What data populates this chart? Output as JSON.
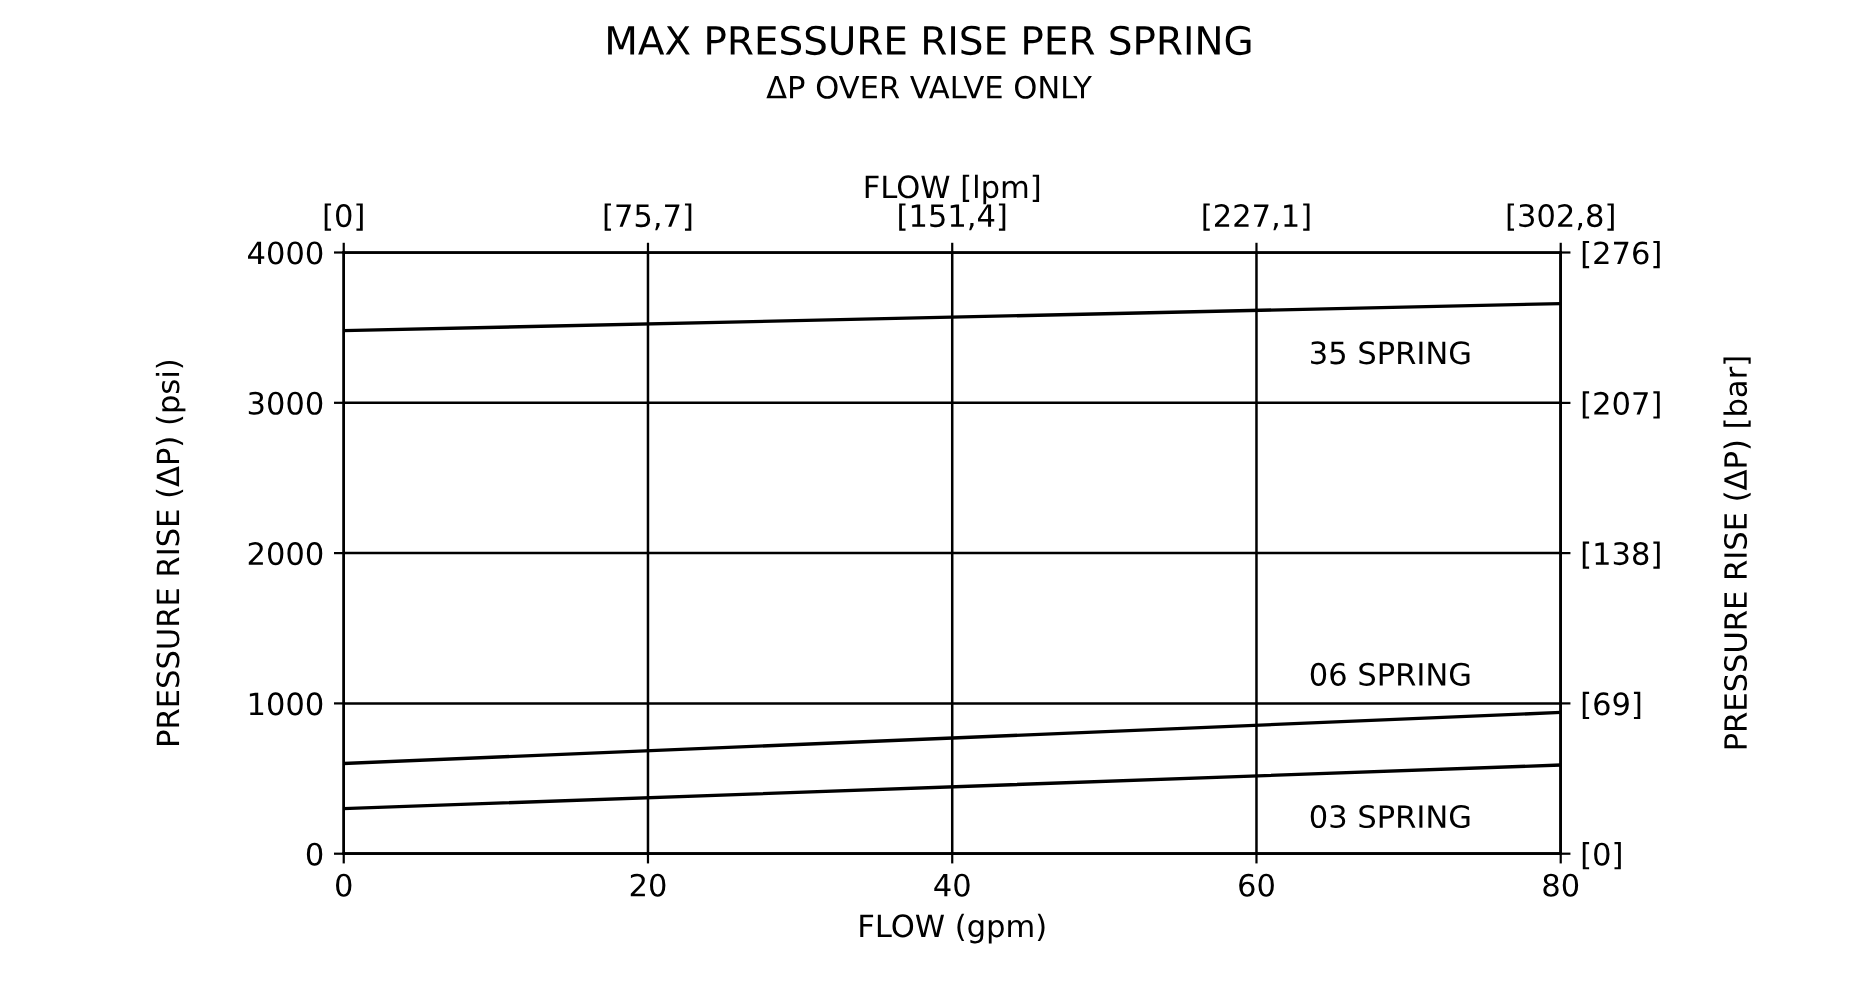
{
  "chart_data": {
    "type": "line",
    "title": "MAX PRESSURE RISE PER SPRING",
    "subtitle": "ΔP OVER VALVE ONLY",
    "xlabel": "FLOW (gpm)",
    "ylabel": "PRESSURE RISE (ΔP) (psi)",
    "y2label": "PRESSURE RISE (ΔP) [bar]",
    "x2label": "FLOW [lpm]",
    "x": [
      0,
      80
    ],
    "series": [
      {
        "name": "35 SPRING",
        "color": "#000000",
        "values": [
          3480,
          3660
        ]
      },
      {
        "name": "06 SPRING",
        "color": "#000000",
        "values": [
          600,
          940
        ]
      },
      {
        "name": "03 SPRING",
        "color": "#000000",
        "values": [
          300,
          590
        ]
      }
    ],
    "xlim": [
      0,
      80
    ],
    "xticks": [
      0,
      20,
      40,
      60,
      80
    ],
    "ylim": [
      0,
      4000
    ],
    "yticks": [
      0,
      1000,
      2000,
      3000,
      4000
    ],
    "y2lim": [
      0,
      275.8
    ],
    "y2ticks": [
      {
        "value": 0,
        "label": "[0]"
      },
      {
        "value": 68.95,
        "label": "[69]"
      },
      {
        "value": 137.9,
        "label": "[138]"
      },
      {
        "value": 206.8,
        "label": "[207]"
      },
      {
        "value": 275.8,
        "label": "[276]"
      }
    ],
    "x2lim": [
      0,
      302.8
    ],
    "x2ticks": [
      {
        "value": 0,
        "label": "[0]"
      },
      {
        "value": 75.7,
        "label": "[75,7]"
      },
      {
        "value": 151.4,
        "label": "[151,4]"
      },
      {
        "value": 227.1,
        "label": "[227,1]"
      },
      {
        "value": 302.8,
        "label": "[302,8]"
      }
    ],
    "grid": true,
    "marker": "none",
    "line_style": "solid",
    "legend": false
  }
}
